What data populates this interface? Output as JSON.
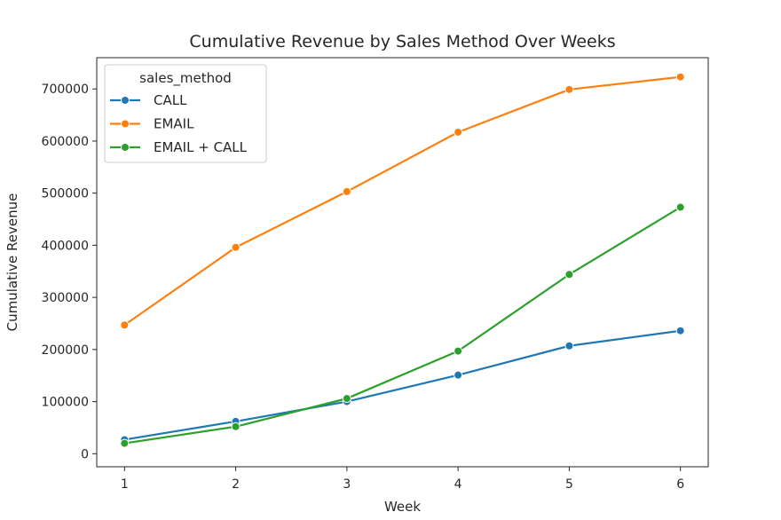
{
  "chart_data": {
    "type": "line",
    "title": "Cumulative Revenue by Sales Method Over Weeks",
    "xlabel": "Week",
    "ylabel": "Cumulative Revenue",
    "x": [
      1,
      2,
      3,
      4,
      5,
      6
    ],
    "x_ticks": [
      "1",
      "2",
      "3",
      "4",
      "5",
      "6"
    ],
    "y_ticks": [
      "0",
      "100000",
      "200000",
      "300000",
      "400000",
      "500000",
      "600000",
      "700000"
    ],
    "xlim": [
      0.75,
      6.25
    ],
    "ylim": [
      -25000,
      760000
    ],
    "grid": false,
    "markers": true,
    "legend": {
      "title": "sales_method",
      "placement": "upper left"
    },
    "series": [
      {
        "name": "CALL",
        "color": "#1f77b4",
        "values": [
          27000,
          62000,
          100000,
          151000,
          207000,
          236000
        ]
      },
      {
        "name": "EMAIL",
        "color": "#ff7f0e",
        "values": [
          247000,
          396000,
          503000,
          617000,
          699000,
          723000
        ]
      },
      {
        "name": "EMAIL + CALL",
        "color": "#2ca02c",
        "values": [
          20000,
          52000,
          106000,
          197000,
          344000,
          473000
        ]
      }
    ]
  }
}
